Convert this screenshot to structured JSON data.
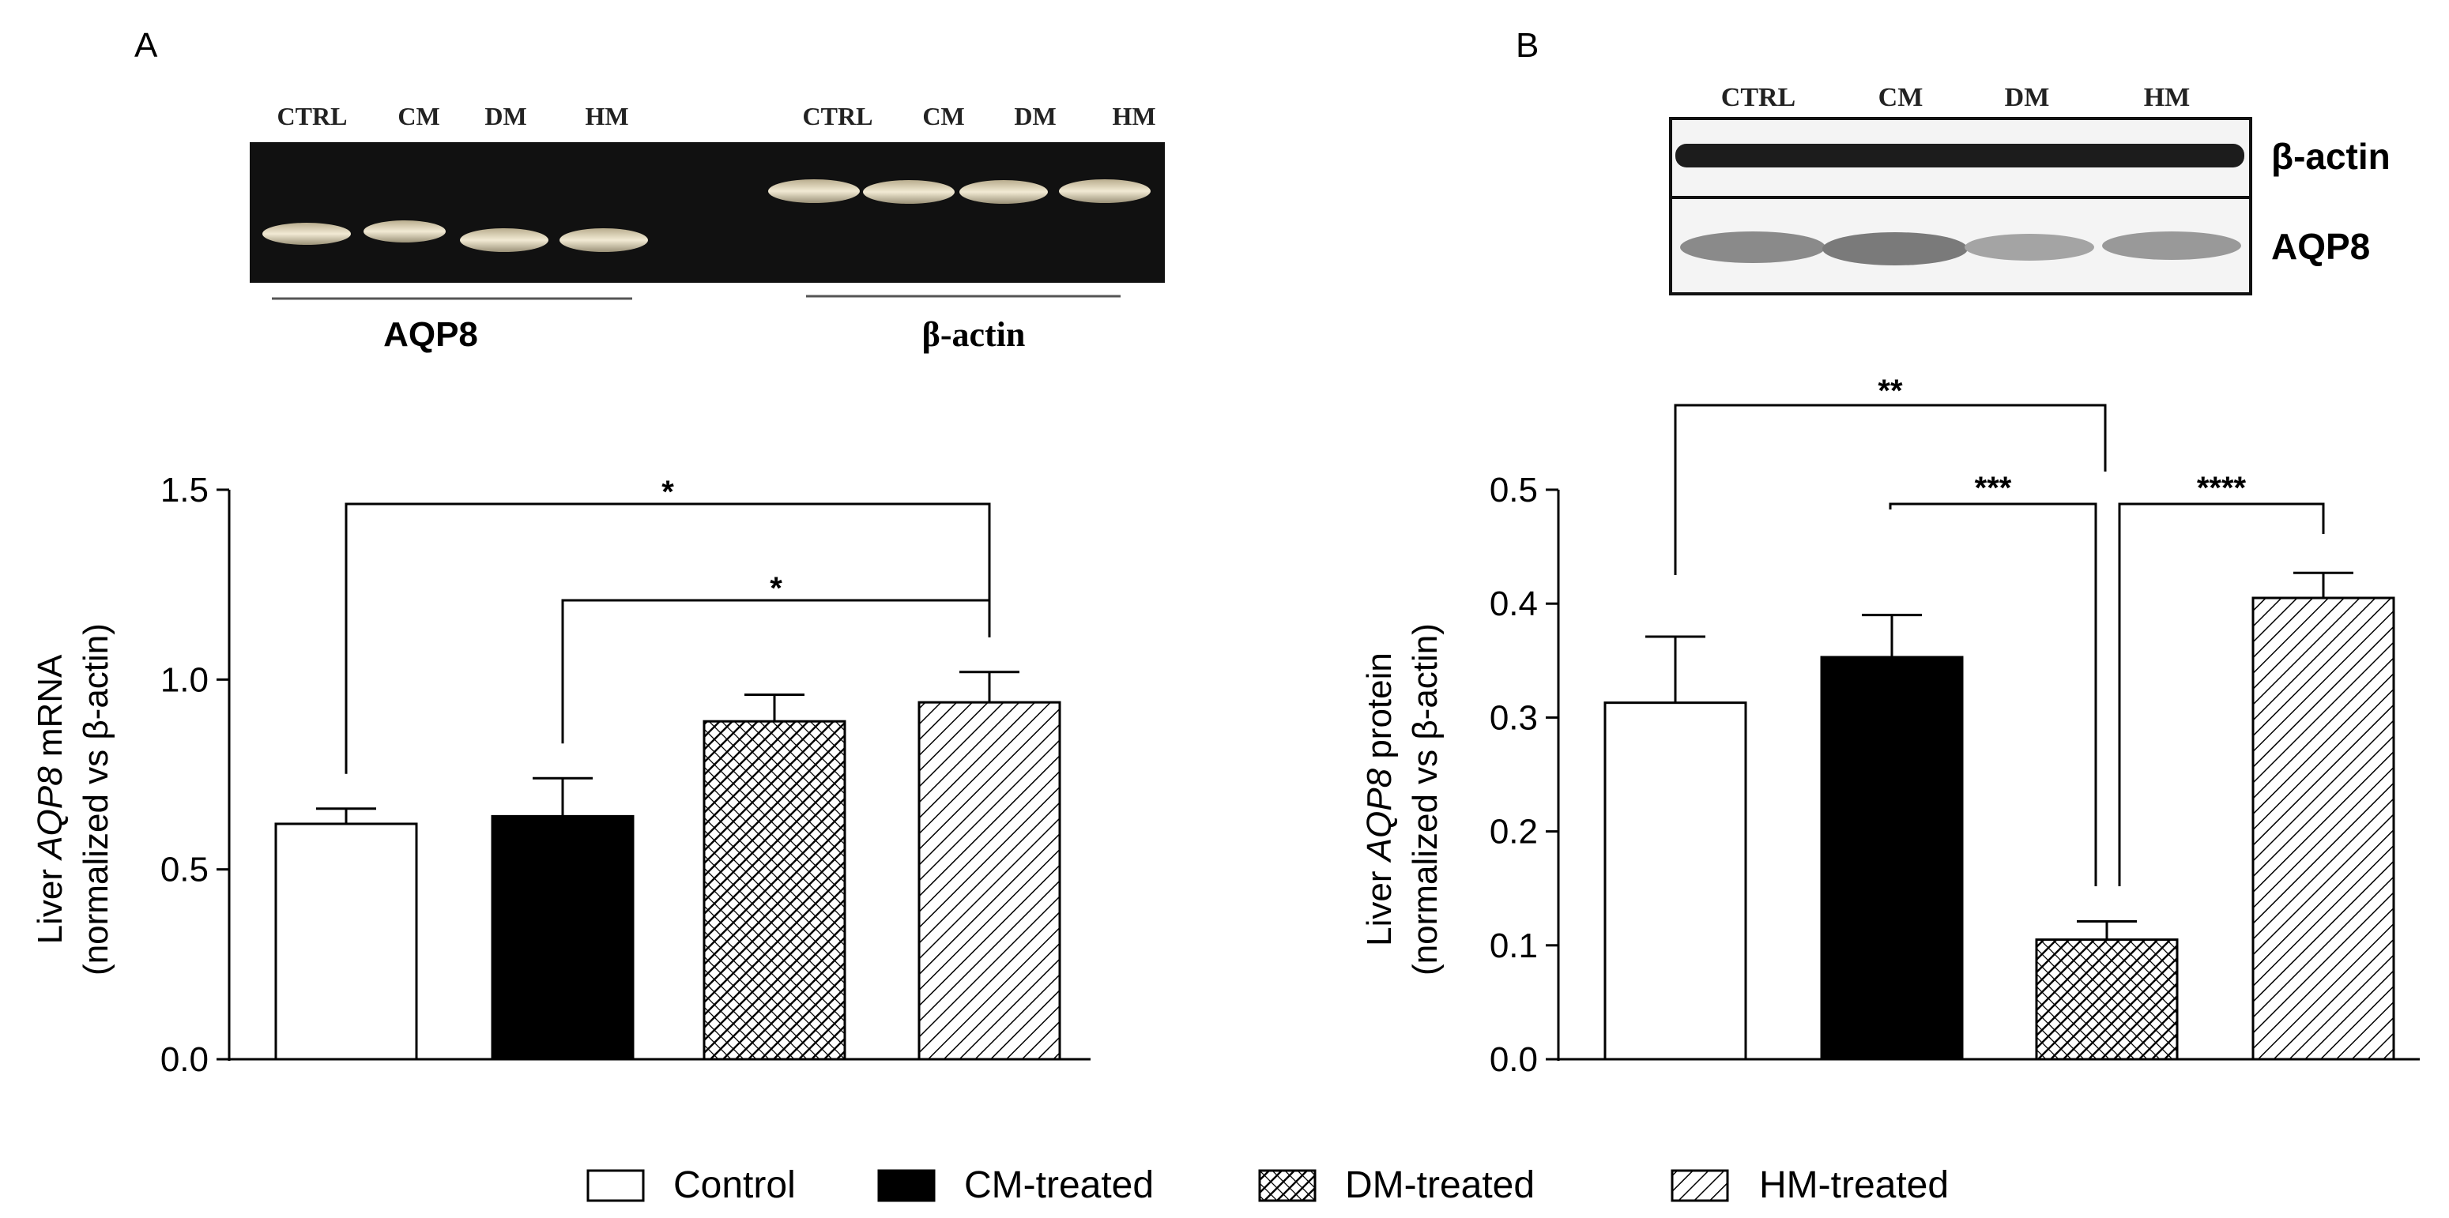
{
  "panels": {
    "A": {
      "letter": "A",
      "gel": {
        "lane_labels_left": [
          "CTRL",
          "CM",
          "DM",
          "HM"
        ],
        "lane_labels_right": [
          "CTRL",
          "CM",
          "DM",
          "HM"
        ],
        "label_left": "AQP8",
        "label_right": "β-actin"
      },
      "ylabel_italic": "AQP8",
      "ylabel_prefix": "Liver ",
      "ylabel_suffix": " mRNA",
      "ylabel_line2": "(normalized vs β-actin)"
    },
    "B": {
      "letter": "B",
      "blot": {
        "lane_labels": [
          "CTRL",
          "CM",
          "DM",
          "HM"
        ],
        "row_labels": [
          "β-actin",
          "AQP8"
        ]
      },
      "ylabel_italic": "AQP8",
      "ylabel_prefix": "Liver ",
      "ylabel_suffix": " protein",
      "ylabel_line2": "(normalized vs β-actin)"
    }
  },
  "legend": {
    "items": [
      "Control",
      "CM-treated",
      "DM-treated",
      "HM-treated"
    ]
  },
  "chart_data": [
    {
      "type": "bar",
      "panel": "A",
      "categories": [
        "Control",
        "CM-treated",
        "DM-treated",
        "HM-treated"
      ],
      "values": [
        0.62,
        0.64,
        0.89,
        0.94
      ],
      "errors": [
        0.04,
        0.1,
        0.07,
        0.08
      ],
      "ylim": [
        0,
        1.5
      ],
      "yticks": [
        "0.0",
        "0.5",
        "1.0",
        "1.5"
      ],
      "ytick_values": [
        0,
        0.5,
        1.0,
        1.5
      ],
      "grid": false,
      "legend": "bottom",
      "significance": [
        {
          "from": 0,
          "to": 3,
          "label": "*"
        },
        {
          "from": 1,
          "to": 3,
          "label": "*"
        }
      ]
    },
    {
      "type": "bar",
      "panel": "B",
      "categories": [
        "Control",
        "CM-treated",
        "DM-treated",
        "HM-treated"
      ],
      "values": [
        0.313,
        0.353,
        0.105,
        0.405
      ],
      "errors": [
        0.058,
        0.037,
        0.016,
        0.022
      ],
      "ylim": [
        0,
        0.5
      ],
      "yticks": [
        "0.0",
        "0.1",
        "0.2",
        "0.3",
        "0.4",
        "0.5"
      ],
      "ytick_values": [
        0,
        0.1,
        0.2,
        0.3,
        0.4,
        0.5
      ],
      "grid": false,
      "legend": "bottom",
      "significance": [
        {
          "from": 0,
          "to": 2,
          "label": "**"
        },
        {
          "from": 1,
          "to": 2,
          "label": "***"
        },
        {
          "from": 2,
          "to": 3,
          "label": "****"
        }
      ]
    }
  ],
  "colors": {
    "bar_outline": "#000000",
    "control_fill": "#ffffff",
    "cm_fill": "#000000",
    "gel_bg": "#111111",
    "gel_band": "#e4dcc2",
    "blot_bg": "#f4f4f4",
    "blot_band_dark": "#1c1c1c",
    "blot_band_light": "#8a8a8a"
  }
}
